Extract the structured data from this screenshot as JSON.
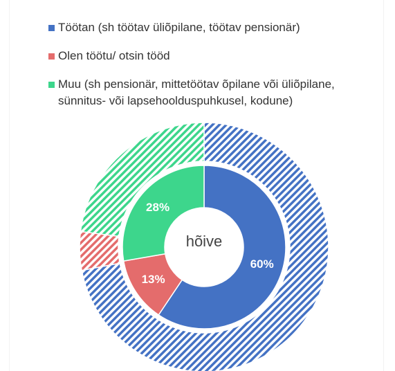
{
  "chart_data": {
    "type": "donut",
    "categories": [
      "Töötan (sh töötav üliõpilane, töötav pensionär)",
      "Olen töötu/ otsin tööd",
      "Muu (sh pensionär, mittetöötav õpilane või üliõpilane, sünnitus- või lapsehoolduspuhkusel, kodune)"
    ],
    "colors": [
      "#4472c4",
      "#e46c6c",
      "#3dd68c"
    ],
    "center_label": "hõive",
    "series": [
      {
        "values": [
          60,
          13,
          28
        ],
        "value_labels": [
          "60%",
          "13%",
          "28%"
        ]
      },
      {
        "values": [
          72,
          5,
          23
        ],
        "pattern": "hatch"
      }
    ]
  }
}
